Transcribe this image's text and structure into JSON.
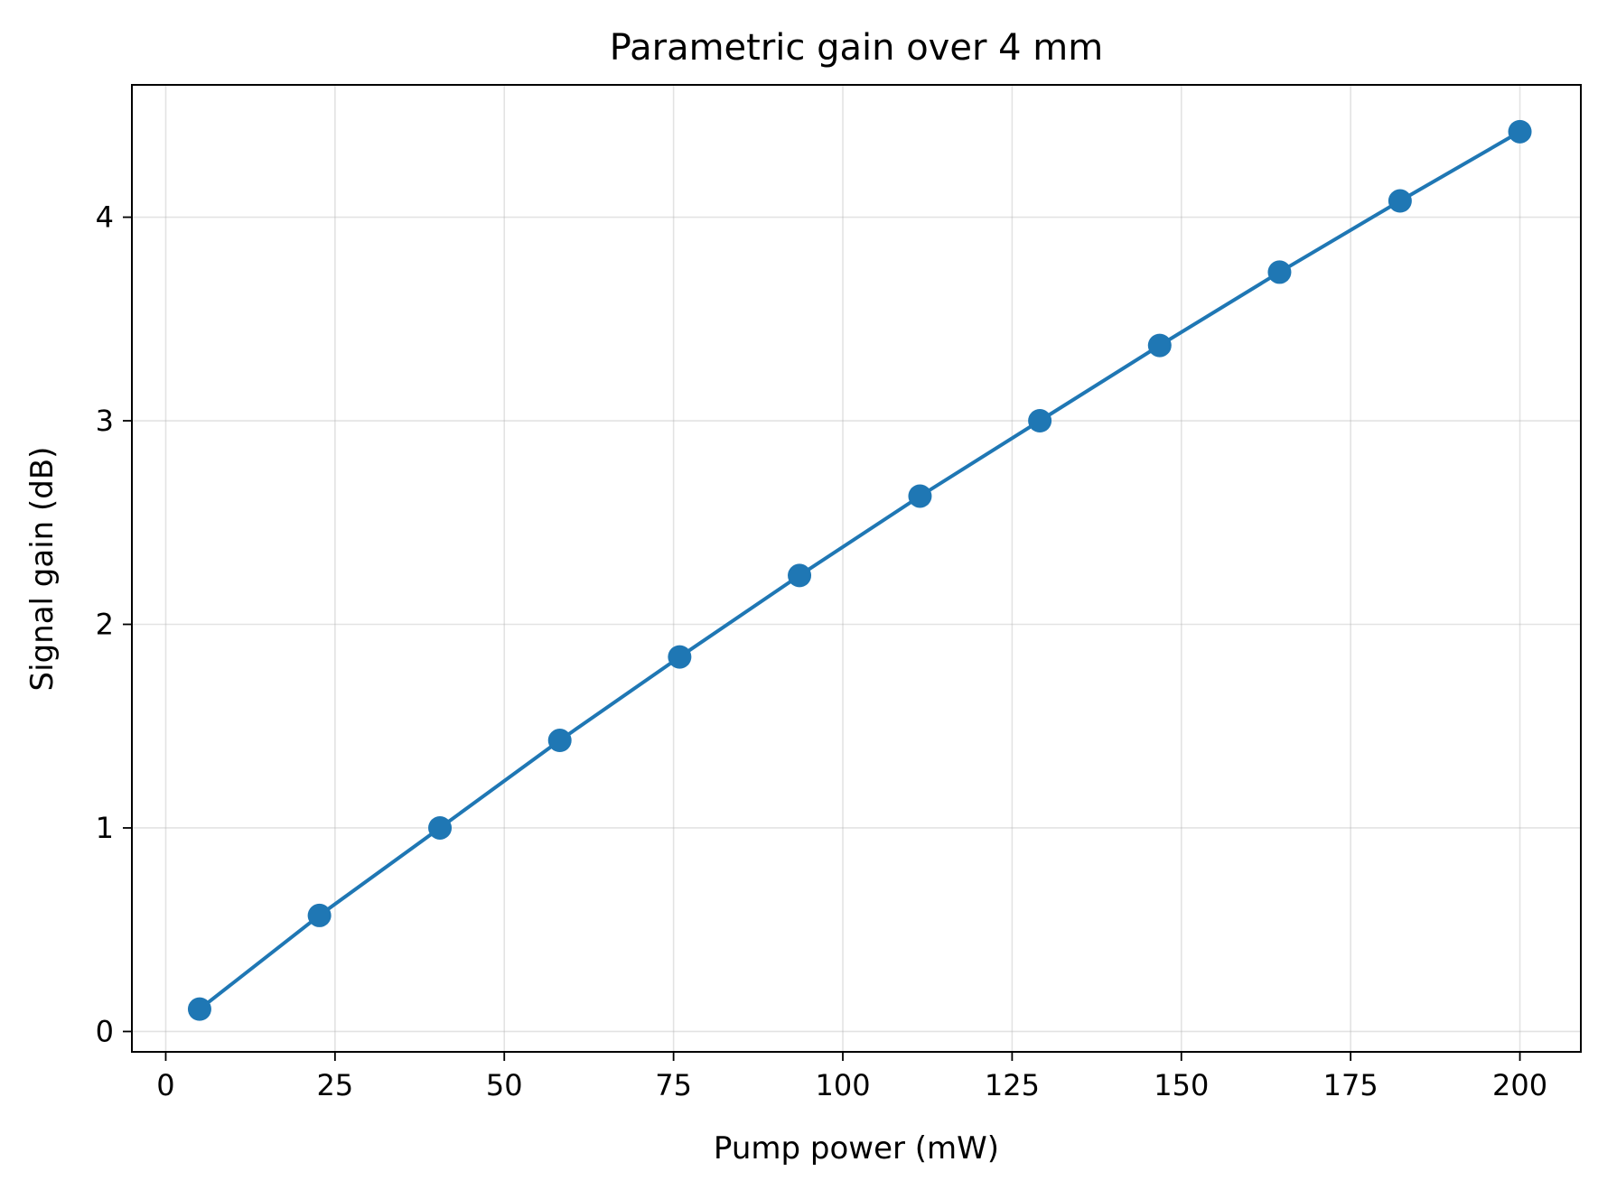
{
  "chart_data": {
    "type": "line",
    "title": "Parametric gain over 4 mm",
    "xlabel": "Pump power (mW)",
    "ylabel": "Signal gain (dB)",
    "xlim": [
      -5,
      209
    ],
    "ylim": [
      -0.1,
      4.65
    ],
    "xticks": [
      0,
      25,
      50,
      75,
      100,
      125,
      150,
      175,
      200
    ],
    "yticks": [
      0,
      1,
      2,
      3,
      4
    ],
    "grid": true,
    "legend": "none",
    "series": [
      {
        "color": "#1f77b4",
        "marker": "circle",
        "x": [
          5.0,
          22.7,
          40.5,
          58.2,
          75.9,
          93.6,
          111.4,
          129.1,
          146.8,
          164.5,
          182.3,
          200.0
        ],
        "y": [
          0.11,
          0.57,
          1.0,
          1.43,
          1.84,
          2.24,
          2.63,
          3.0,
          3.37,
          3.73,
          4.08,
          4.42
        ]
      }
    ]
  }
}
